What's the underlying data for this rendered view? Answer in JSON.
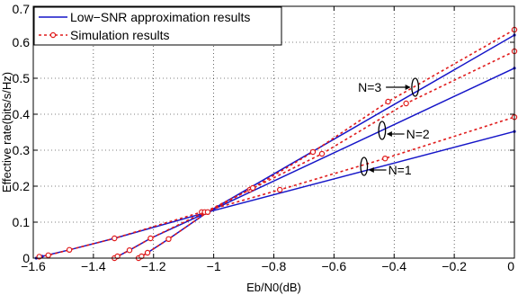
{
  "chart_data": {
    "type": "line",
    "xlabel": "Eb/N0(dB)",
    "ylabel": "Effective rate(bits/s/Hz)",
    "xlim": [
      -1.6,
      0
    ],
    "ylim": [
      0,
      0.7
    ],
    "xticks": [
      -1.6,
      -1.4,
      -1.2,
      -1,
      -0.8,
      -0.6,
      -0.4,
      -0.2,
      0
    ],
    "xtick_labels": [
      "−1.6",
      "−1.4",
      "−1.2",
      "−1",
      "−0.8",
      "−0.6",
      "−0.4",
      "−0.2",
      "0"
    ],
    "yticks": [
      0,
      0.1,
      0.2,
      0.3,
      0.4,
      0.5,
      0.6,
      0.7
    ],
    "ytick_labels": [
      "0",
      "0.1",
      "0.2",
      "0.3",
      "0.4",
      "0.5",
      "0.6",
      "0.7"
    ],
    "grid": true,
    "grid_style": "dotted",
    "legend_position": "top-left",
    "legend": [
      {
        "label": "Low−SNR approximation results",
        "style": "solid",
        "color": "#1515c8"
      },
      {
        "label": "Simulation results",
        "style": "dotted",
        "marker": "circle",
        "color": "#e01b1b"
      }
    ],
    "colors": {
      "approximation": "#1515c8",
      "simulation": "#e01b1b"
    },
    "series": [
      {
        "group": "N=1",
        "kind": "approximation",
        "x": [
          -1.59,
          -1.57,
          -1.55,
          -1.48,
          -1.33,
          -1.02,
          0.0
        ],
        "y": [
          0.0,
          0.005,
          0.009,
          0.023,
          0.055,
          0.128,
          0.352
        ]
      },
      {
        "group": "N=1",
        "kind": "simulation",
        "x": [
          -1.58,
          -1.55,
          -1.48,
          -1.33,
          -1.04,
          -0.78,
          -0.43,
          0.0
        ],
        "y": [
          0.004,
          0.008,
          0.023,
          0.055,
          0.128,
          0.19,
          0.277,
          0.392
        ]
      },
      {
        "group": "N=2",
        "kind": "approximation",
        "x": [
          -1.33,
          -1.28,
          -1.21,
          -1.02,
          0.0
        ],
        "y": [
          0.0,
          0.022,
          0.055,
          0.128,
          0.528
        ]
      },
      {
        "group": "N=2",
        "kind": "simulation",
        "x": [
          -1.33,
          -1.32,
          -1.28,
          -1.21,
          -1.03,
          -0.88,
          -0.64,
          -0.36,
          0.0
        ],
        "y": [
          0.0,
          0.005,
          0.022,
          0.055,
          0.128,
          0.19,
          0.29,
          0.43,
          0.575
        ]
      },
      {
        "group": "N=3",
        "kind": "approximation",
        "x": [
          -1.25,
          -1.24,
          -1.22,
          -1.15,
          -1.02,
          0.0
        ],
        "y": [
          0.0,
          0.005,
          0.015,
          0.053,
          0.128,
          0.62
        ]
      },
      {
        "group": "N=3",
        "kind": "simulation",
        "x": [
          -1.25,
          -1.24,
          -1.22,
          -1.15,
          -1.02,
          -0.87,
          -0.67,
          -0.42,
          0.0
        ],
        "y": [
          0.0,
          0.005,
          0.015,
          0.053,
          0.128,
          0.195,
          0.295,
          0.435,
          0.635
        ]
      }
    ],
    "annotations": [
      {
        "text": "N=3",
        "ellipse_at": [
          -0.33,
          0.475
        ],
        "label_at": [
          -0.52,
          0.475
        ],
        "arrow": "right"
      },
      {
        "text": "N=2",
        "ellipse_at": [
          -0.44,
          0.355
        ],
        "label_at": [
          -0.36,
          0.345
        ],
        "arrow": "left"
      },
      {
        "text": "N=1",
        "ellipse_at": [
          -0.5,
          0.255
        ],
        "label_at": [
          -0.42,
          0.245
        ],
        "arrow": "left"
      }
    ]
  }
}
